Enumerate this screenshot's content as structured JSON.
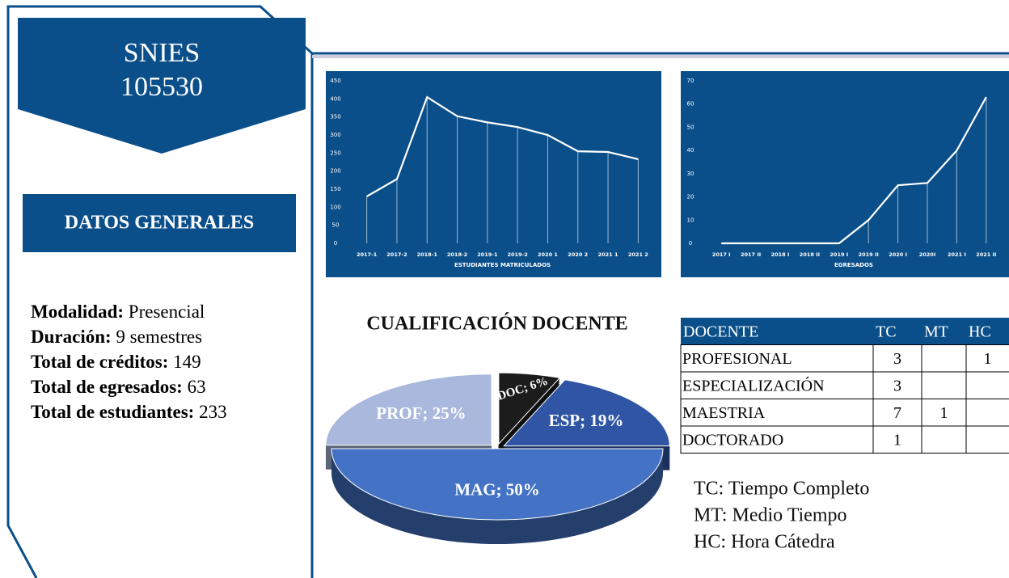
{
  "sidebar": {
    "code": [
      "SNIES",
      "105530"
    ],
    "heading": "DATOS GENERALES",
    "items": [
      {
        "label": "Modalidad:",
        "value": "Presencial"
      },
      {
        "label": "Duración:",
        "value": "9 semestres"
      },
      {
        "label": "Total de créditos:",
        "value": "149"
      },
      {
        "label": "Total de egresados:",
        "value": "63"
      },
      {
        "label": "Total de estudiantes:",
        "value": "233"
      }
    ]
  },
  "chart_data": [
    {
      "type": "line",
      "x_label": "ESTUDIANTES MATRICULADOS",
      "categories": [
        "2017-1",
        "2017-2",
        "2018-1",
        "2018-2",
        "2019-1",
        "2019-2",
        "2020 1",
        "2020 2",
        "2021 1",
        "2021 2"
      ],
      "values": [
        130,
        178,
        405,
        352,
        335,
        322,
        300,
        255,
        253,
        233
      ],
      "color": "#ffffff",
      "ylim": [
        0,
        450
      ],
      "yticks": [
        0,
        50,
        100,
        150,
        200,
        250,
        300,
        350,
        400,
        450
      ],
      "grid": false
    },
    {
      "type": "line",
      "x_label": "EGRESADOS",
      "categories": [
        "2017 I",
        "2017 II",
        "2018 I",
        "2018 II",
        "2019 I",
        "2019 II",
        "2020 I",
        "2020I",
        "2021 I",
        "2021 II"
      ],
      "values": [
        0,
        0,
        0,
        0,
        0,
        10,
        25,
        26,
        40,
        63
      ],
      "color": "#ffffff",
      "ylim": [
        0,
        70
      ],
      "yticks": [
        0,
        10,
        20,
        30,
        40,
        50,
        60,
        70
      ],
      "grid": false
    },
    {
      "type": "pie",
      "title": "CUALIFICACIÓN DOCENTE",
      "categories": [
        "PROF",
        "DOC",
        "ESP",
        "MAG"
      ],
      "values": [
        25,
        6,
        19,
        50
      ],
      "value_labels": [
        "PROF; 25%",
        "DOC; 6%",
        "ESP; 19%",
        "MAG; 50%"
      ],
      "colors": [
        "#a9b8dc",
        "#1c1c1c",
        "#2f55a4",
        "#4472c4"
      ]
    }
  ],
  "table": {
    "header": [
      "DOCENTE",
      "TC",
      "MT",
      "HC"
    ],
    "rows": [
      [
        "PROFESIONAL",
        3,
        null,
        1
      ],
      [
        "ESPECIALIZACIÓN",
        3,
        null,
        null
      ],
      [
        "MAESTRIA",
        7,
        1,
        null
      ],
      [
        "DOCTORADO",
        1,
        null,
        null
      ]
    ]
  },
  "notes": [
    "TC: Tiempo Completo",
    "MT: Medio Tiempo",
    "HC: Hora Cátedra"
  ]
}
